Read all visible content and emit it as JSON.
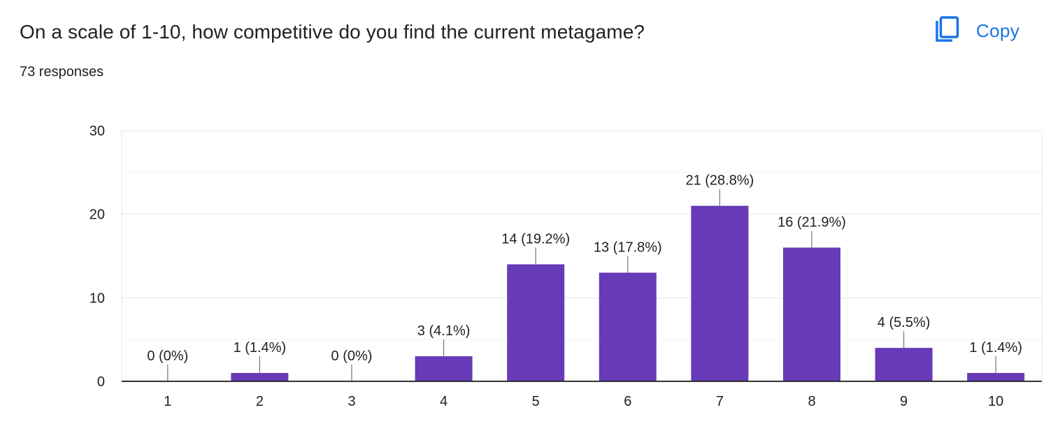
{
  "question": {
    "title": "On a scale of 1-10, how competitive do you find the current metagame?",
    "responses_label": "73 responses"
  },
  "toolbar": {
    "copy_label": "Copy",
    "copy_icon": "copy-icon"
  },
  "colors": {
    "bar": "#673ab7",
    "accent": "#1a73e8",
    "text": "#202124",
    "grid_major": "#e6e6e6",
    "grid_minor": "#f3f3f3",
    "axis": "#333333"
  },
  "chart_data": {
    "type": "bar",
    "title": "",
    "xlabel": "",
    "ylabel": "",
    "categories": [
      "1",
      "2",
      "3",
      "4",
      "5",
      "6",
      "7",
      "8",
      "9",
      "10"
    ],
    "values": [
      0,
      1,
      0,
      3,
      14,
      13,
      21,
      16,
      4,
      1
    ],
    "data_labels": [
      "0 (0%)",
      "1 (1.4%)",
      "0 (0%)",
      "3 (4.1%)",
      "14 (19.2%)",
      "13 (17.8%)",
      "21 (28.8%)",
      "16 (21.9%)",
      "4 (5.5%)",
      "1 (1.4%)"
    ],
    "yticks": [
      0,
      10,
      20,
      30
    ],
    "ylim": [
      0,
      30
    ],
    "grid": true,
    "legend": "none"
  }
}
